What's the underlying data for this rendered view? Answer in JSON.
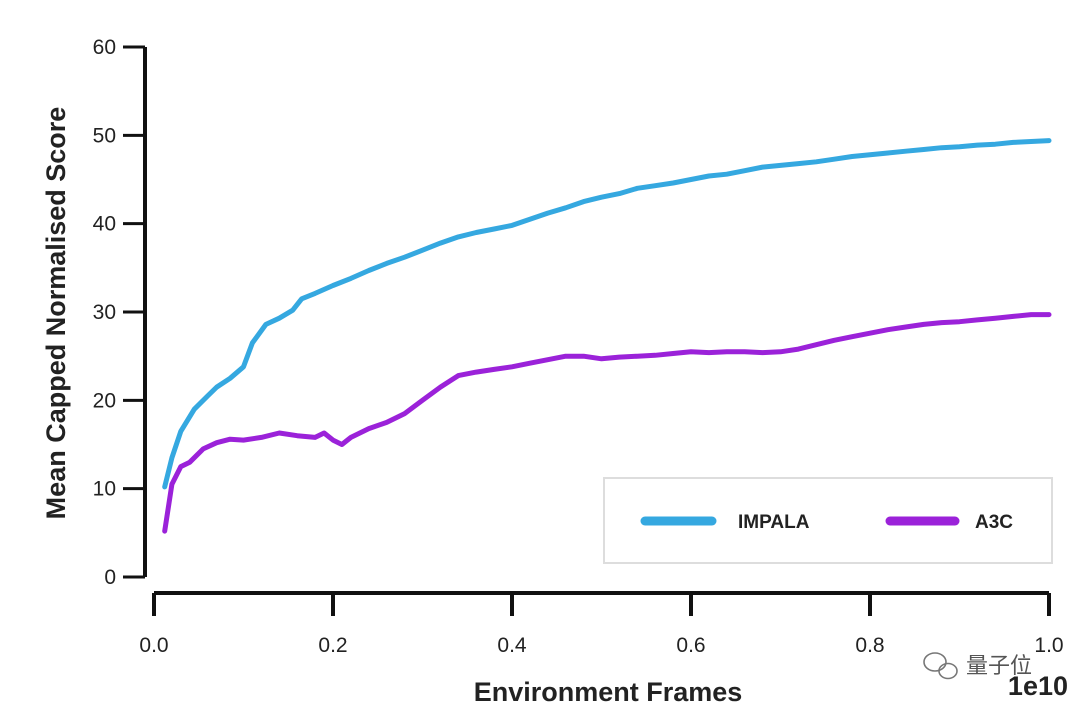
{
  "chart_data": {
    "type": "line",
    "title": "",
    "xlabel": "Environment Frames",
    "ylabel": "Mean Capped Normalised Score",
    "x_scale_label": "1e10",
    "xlim": [
      0.0,
      1.0
    ],
    "ylim": [
      0,
      60
    ],
    "x_ticks": [
      "0.0",
      "0.2",
      "0.4",
      "0.6",
      "0.8",
      "1.0"
    ],
    "y_ticks": [
      "0",
      "10",
      "20",
      "30",
      "40",
      "50",
      "60"
    ],
    "grid": false,
    "legend_position": "bottom-right",
    "series": [
      {
        "name": "IMPALA",
        "color": "#35a8e0",
        "points": [
          [
            0.012,
            10.2
          ],
          [
            0.02,
            13.5
          ],
          [
            0.03,
            16.5
          ],
          [
            0.045,
            19.0
          ],
          [
            0.06,
            20.5
          ],
          [
            0.07,
            21.5
          ],
          [
            0.085,
            22.5
          ],
          [
            0.1,
            23.8
          ],
          [
            0.11,
            26.5
          ],
          [
            0.125,
            28.6
          ],
          [
            0.14,
            29.3
          ],
          [
            0.155,
            30.2
          ],
          [
            0.165,
            31.5
          ],
          [
            0.18,
            32.1
          ],
          [
            0.2,
            33.0
          ],
          [
            0.22,
            33.8
          ],
          [
            0.24,
            34.7
          ],
          [
            0.26,
            35.5
          ],
          [
            0.28,
            36.2
          ],
          [
            0.3,
            37.0
          ],
          [
            0.32,
            37.8
          ],
          [
            0.34,
            38.5
          ],
          [
            0.36,
            39.0
          ],
          [
            0.38,
            39.4
          ],
          [
            0.4,
            39.8
          ],
          [
            0.42,
            40.5
          ],
          [
            0.44,
            41.2
          ],
          [
            0.46,
            41.8
          ],
          [
            0.48,
            42.5
          ],
          [
            0.5,
            43.0
          ],
          [
            0.52,
            43.4
          ],
          [
            0.54,
            44.0
          ],
          [
            0.56,
            44.3
          ],
          [
            0.58,
            44.6
          ],
          [
            0.6,
            45.0
          ],
          [
            0.62,
            45.4
          ],
          [
            0.64,
            45.6
          ],
          [
            0.66,
            46.0
          ],
          [
            0.68,
            46.4
          ],
          [
            0.7,
            46.6
          ],
          [
            0.72,
            46.8
          ],
          [
            0.74,
            47.0
          ],
          [
            0.76,
            47.3
          ],
          [
            0.78,
            47.6
          ],
          [
            0.8,
            47.8
          ],
          [
            0.82,
            48.0
          ],
          [
            0.84,
            48.2
          ],
          [
            0.86,
            48.4
          ],
          [
            0.88,
            48.6
          ],
          [
            0.9,
            48.7
          ],
          [
            0.92,
            48.9
          ],
          [
            0.94,
            49.0
          ],
          [
            0.96,
            49.2
          ],
          [
            0.98,
            49.3
          ],
          [
            1.0,
            49.4
          ]
        ]
      },
      {
        "name": "A3C",
        "color": "#9b22d9",
        "points": [
          [
            0.012,
            5.2
          ],
          [
            0.02,
            10.5
          ],
          [
            0.03,
            12.5
          ],
          [
            0.04,
            13.0
          ],
          [
            0.055,
            14.5
          ],
          [
            0.07,
            15.2
          ],
          [
            0.085,
            15.6
          ],
          [
            0.1,
            15.5
          ],
          [
            0.12,
            15.8
          ],
          [
            0.14,
            16.3
          ],
          [
            0.16,
            16.0
          ],
          [
            0.18,
            15.8
          ],
          [
            0.19,
            16.3
          ],
          [
            0.2,
            15.5
          ],
          [
            0.21,
            15.0
          ],
          [
            0.22,
            15.8
          ],
          [
            0.24,
            16.8
          ],
          [
            0.26,
            17.5
          ],
          [
            0.28,
            18.5
          ],
          [
            0.3,
            20.0
          ],
          [
            0.32,
            21.5
          ],
          [
            0.34,
            22.8
          ],
          [
            0.36,
            23.2
          ],
          [
            0.38,
            23.5
          ],
          [
            0.4,
            23.8
          ],
          [
            0.42,
            24.2
          ],
          [
            0.44,
            24.6
          ],
          [
            0.46,
            25.0
          ],
          [
            0.48,
            25.0
          ],
          [
            0.5,
            24.7
          ],
          [
            0.52,
            24.9
          ],
          [
            0.54,
            25.0
          ],
          [
            0.56,
            25.1
          ],
          [
            0.58,
            25.3
          ],
          [
            0.6,
            25.5
          ],
          [
            0.62,
            25.4
          ],
          [
            0.64,
            25.5
          ],
          [
            0.66,
            25.5
          ],
          [
            0.68,
            25.4
          ],
          [
            0.7,
            25.5
          ],
          [
            0.72,
            25.8
          ],
          [
            0.74,
            26.3
          ],
          [
            0.76,
            26.8
          ],
          [
            0.78,
            27.2
          ],
          [
            0.8,
            27.6
          ],
          [
            0.82,
            28.0
          ],
          [
            0.84,
            28.3
          ],
          [
            0.86,
            28.6
          ],
          [
            0.88,
            28.8
          ],
          [
            0.9,
            28.9
          ],
          [
            0.92,
            29.1
          ],
          [
            0.94,
            29.3
          ],
          [
            0.96,
            29.5
          ],
          [
            0.98,
            29.7
          ],
          [
            1.0,
            29.7
          ]
        ]
      }
    ]
  },
  "watermark": {
    "text": "量子位",
    "icon": "wechat-icon"
  }
}
